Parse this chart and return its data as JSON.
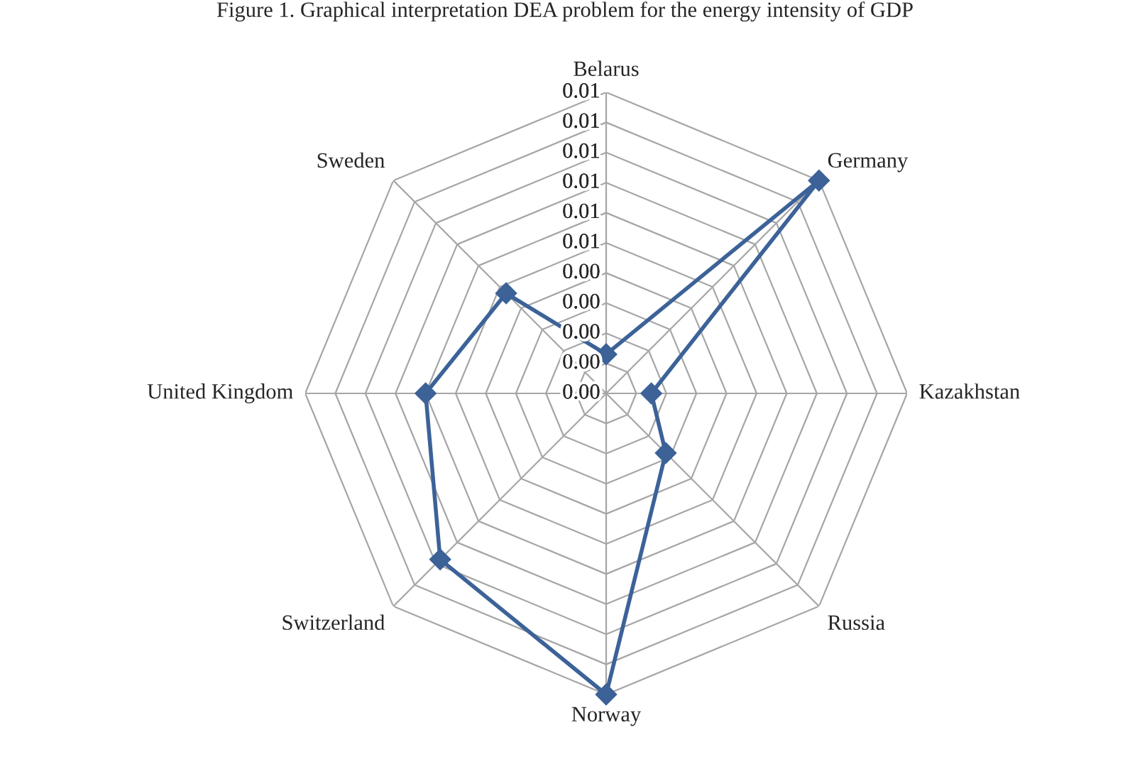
{
  "chart_data": {
    "type": "radar",
    "title": "Figure 1. Graphical interpretation DEA problem for the energy intensity of GDP",
    "categories": [
      "Belarus",
      "Germany",
      "Kazakhstan",
      "Russia",
      "Norway",
      "Switzerland",
      "United Kingdom",
      "Sweden"
    ],
    "series": [
      {
        "color": "#3c6298",
        "values": [
          0.0013,
          0.01,
          0.0015,
          0.0028,
          0.01,
          0.0078,
          0.006,
          0.0047
        ]
      }
    ],
    "ylim": [
      0,
      0.01
    ],
    "yticks": [
      {
        "value": 0,
        "label": "0.00"
      },
      {
        "value": 0.001,
        "label": "0.00"
      },
      {
        "value": 0.002,
        "label": "0.00"
      },
      {
        "value": 0.003,
        "label": "0.00"
      },
      {
        "value": 0.004,
        "label": "0.00"
      },
      {
        "value": 0.005,
        "label": "0.01"
      },
      {
        "value": 0.006,
        "label": "0.01"
      },
      {
        "value": 0.007,
        "label": "0.01"
      },
      {
        "value": 0.008,
        "label": "0.01"
      },
      {
        "value": 0.009,
        "label": "0.01"
      },
      {
        "value": 0.01,
        "label": "0.01"
      }
    ],
    "marker": "diamond",
    "grid": true
  }
}
